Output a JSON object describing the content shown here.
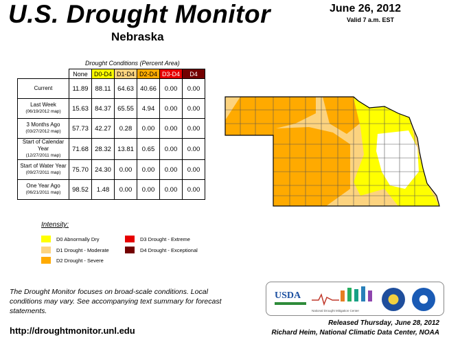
{
  "header": {
    "title": "U.S. Drought Monitor",
    "state": "Nebraska",
    "date": "June 26, 2012",
    "valid": "Valid 7 a.m. EST"
  },
  "table": {
    "caption": "Drought Conditions (Percent Area)",
    "columns": [
      "None",
      "D0-D4",
      "D1-D4",
      "D2-D4",
      "D3-D4",
      "D4"
    ],
    "rows": [
      {
        "label": "Current",
        "sub": "",
        "values": [
          "11.89",
          "88.11",
          "64.63",
          "40.66",
          "0.00",
          "0.00"
        ]
      },
      {
        "label": "Last Week",
        "sub": "(06/19/2012 map)",
        "values": [
          "15.63",
          "84.37",
          "65.55",
          "4.94",
          "0.00",
          "0.00"
        ]
      },
      {
        "label": "3 Months Ago",
        "sub": "(03/27/2012 map)",
        "values": [
          "57.73",
          "42.27",
          "0.28",
          "0.00",
          "0.00",
          "0.00"
        ]
      },
      {
        "label": "Start of Calendar Year",
        "sub": "(12/27/2011 map)",
        "values": [
          "71.68",
          "28.32",
          "13.81",
          "0.65",
          "0.00",
          "0.00"
        ]
      },
      {
        "label": "Start of Water Year",
        "sub": "(09/27/2011 map)",
        "values": [
          "75.70",
          "24.30",
          "0.00",
          "0.00",
          "0.00",
          "0.00"
        ]
      },
      {
        "label": "One Year Ago",
        "sub": "(06/21/2011 map)",
        "values": [
          "98.52",
          "1.48",
          "0.00",
          "0.00",
          "0.00",
          "0.00"
        ]
      }
    ]
  },
  "legend": {
    "title": "Intensity:",
    "items": [
      {
        "label": "D0 Abnormally Dry",
        "color": "#ffff00"
      },
      {
        "label": "D1 Drought - Moderate",
        "color": "#fcd37f"
      },
      {
        "label": "D2 Drought - Severe",
        "color": "#ffaa00"
      },
      {
        "label": "D3 Drought - Extreme",
        "color": "#e60000"
      },
      {
        "label": "D4 Drought - Exceptional",
        "color": "#730000"
      }
    ]
  },
  "column_colors": [
    "#ffffff",
    "#ffff00",
    "#fcd37f",
    "#ffaa00",
    "#e60000",
    "#730000"
  ],
  "column_text_colors": [
    "#000000",
    "#000000",
    "#000000",
    "#000000",
    "#ffffff",
    "#ffffff"
  ],
  "footer": {
    "note": "The Drought Monitor focuses on broad-scale conditions. Local conditions may vary. See accompanying text summary for forecast statements.",
    "url": "http://droughtmonitor.unl.edu",
    "released": "Released Thursday, June 28, 2012",
    "author": "Richard Heim, National Climatic Data Center, NOAA"
  },
  "logos": {
    "usda": "USDA",
    "ndmc_caption": "National Drought Mitigation Center"
  }
}
